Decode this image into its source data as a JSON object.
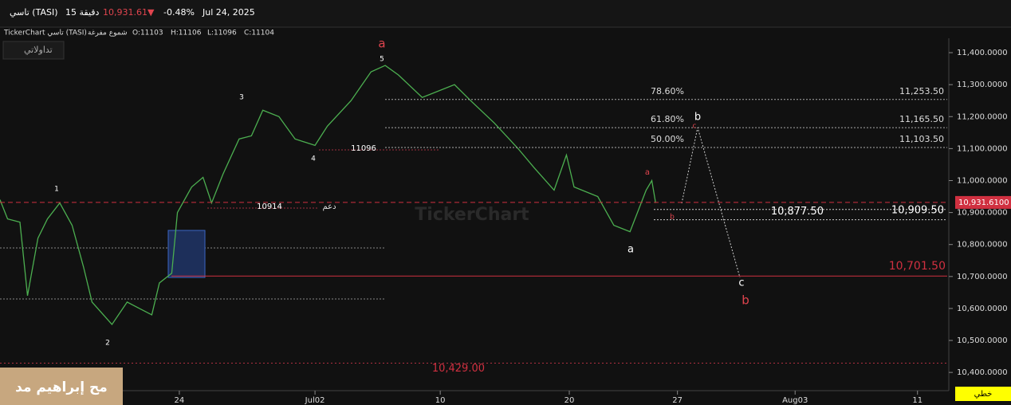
{
  "header": {
    "name": "تاسي (TASI)",
    "interval": "15 دقيقة",
    "price": "10,931.61",
    "direction": "▼",
    "change": "-0.48%",
    "date": "Jul 24, 2025"
  },
  "info": {
    "source": "TickerChart تاسي (TASI)",
    "style": "شموع مفرغة",
    "open": "O:11103",
    "high": "H:11106",
    "low": "L:11096",
    "close": "C:11104"
  },
  "button": "تداولاتي",
  "watermark": "TickerChart",
  "footer_label": "مح إبراهيم مد",
  "chart_mode": "خطي",
  "chart_data": {
    "type": "line",
    "color": "#4caf50",
    "x": [
      0,
      0.8,
      2.1,
      2.9,
      4,
      5,
      6.3,
      7.6,
      8.8,
      9.7,
      11.8,
      13.4,
      14.7,
      16,
      16.8,
      18.1,
      18.7,
      20.2,
      21.4,
      22.3,
      23.5,
      25.2,
      26.5,
      27.7,
      29.4,
      31.1,
      33.2,
      34.5,
      37,
      39.1,
      40.6,
      42,
      44.5,
      47.9,
      49.6,
      52.1,
      54.6,
      56.3,
      58.4,
      59.7,
      60.5,
      63,
      64.7,
      66.4,
      68.1,
      68.7,
      69.1
    ],
    "values": [
      10940,
      10880,
      10870,
      10640,
      10820,
      10880,
      10930,
      10860,
      10730,
      10620,
      10550,
      10620,
      10600,
      10580,
      10680,
      10710,
      10900,
      10980,
      11010,
      10930,
      11020,
      11130,
      11140,
      11220,
      11200,
      11130,
      11110,
      11170,
      11250,
      11340,
      11360,
      11330,
      11260,
      11300,
      11250,
      11180,
      11100,
      11040,
      10970,
      11080,
      10980,
      10950,
      10860,
      10840,
      10970,
      11000,
      10930
    ],
    "xlim": [
      0,
      100
    ],
    "xticks": [
      {
        "value": 18.9,
        "label": "24"
      },
      {
        "value": 33.2,
        "label": "Jul02"
      },
      {
        "value": 46.4,
        "label": "10"
      },
      {
        "value": 60,
        "label": "20"
      },
      {
        "value": 71.4,
        "label": "27"
      },
      {
        "value": 83.8,
        "label": "Aug03"
      },
      {
        "value": 96.7,
        "label": "11"
      }
    ],
    "ylim": [
      10343,
      11445
    ],
    "yticks": [
      {
        "value": 11400,
        "label": "11,400.0000"
      },
      {
        "value": 11300,
        "label": "11,300.0000"
      },
      {
        "value": 11200,
        "label": "11,200.0000"
      },
      {
        "value": 11100,
        "label": "11,100.0000"
      },
      {
        "value": 11000,
        "label": "11,000.0000"
      },
      {
        "value": 10900,
        "label": "10,900.0000"
      },
      {
        "value": 10800,
        "label": "10,800.0000"
      },
      {
        "value": 10700,
        "label": "10,700.0000"
      },
      {
        "value": 10600,
        "label": "10,600.0000"
      },
      {
        "value": 10500,
        "label": "10,500.0000"
      },
      {
        "value": 10400,
        "label": "10,400.0000"
      }
    ],
    "last_price": {
      "value": 10931.61,
      "label": "10,931.6100"
    },
    "fib_levels": [
      {
        "value": 11253.5,
        "label": "11,253.50",
        "ratio": "78.60%"
      },
      {
        "value": 11165.5,
        "label": "11,165.50",
        "ratio": "61.80%"
      },
      {
        "value": 11103.5,
        "label": "11,103.50",
        "ratio": "50.00%"
      }
    ],
    "price_levels": [
      {
        "value": 10909.5,
        "label": "10,909.50"
      },
      {
        "value": 10877.5,
        "label": "10,877.50"
      },
      {
        "value": 10701.5,
        "label": "10,701.50"
      },
      {
        "value": 10429,
        "label": "10,429.00"
      }
    ],
    "marked_levels": [
      11096,
      10914
    ],
    "support_label": "دعم",
    "wave_labels": [
      "a",
      "5",
      "3",
      "1",
      "2",
      "4",
      "a",
      "b",
      "c",
      "b",
      "a",
      "c",
      "b"
    ]
  }
}
